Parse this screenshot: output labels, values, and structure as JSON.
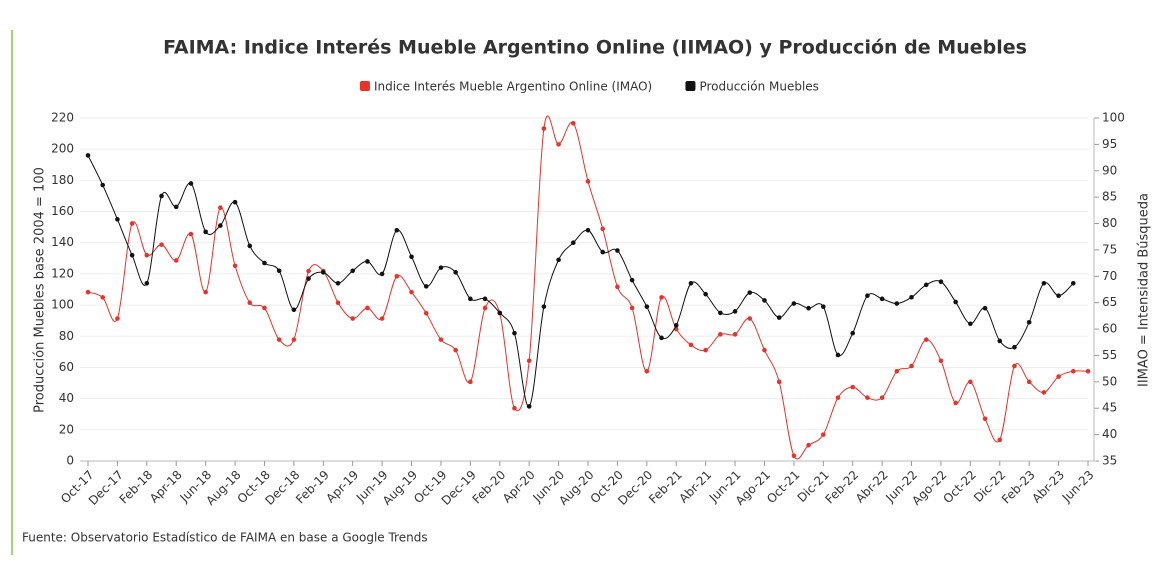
{
  "chart_data": {
    "type": "line",
    "title": "FAIMA: Indice Interés Mueble Argentino Online (IIMAO) y Producción de Muebles",
    "source": "Fuente: Observatorio Estadístico de FAIMA en base a Google Trends",
    "ylabel": "Producción Muebles base 2004 = 100",
    "y2label": "IIMAO = Intensidad Búsqueda",
    "categories": [
      "Oct-17",
      null,
      "Dec-17",
      null,
      "Feb-18",
      null,
      "Apr-18",
      null,
      "Jun-18",
      null,
      "Aug-18",
      null,
      "Oct-18",
      null,
      "Dec-18",
      null,
      "Feb-19",
      null,
      "Apr-19",
      null,
      "Jun-19",
      null,
      "Aug-19",
      null,
      "Oct-19",
      null,
      "Dec-19",
      null,
      "Feb-20",
      null,
      "Apr-20",
      null,
      "Jun-20",
      null,
      "Aug-20",
      null,
      "Oct-20",
      null,
      "Dec-20",
      null,
      "Feb-21",
      null,
      "Abr-21",
      null,
      "Jun-21",
      null,
      "Ago-21",
      null,
      "Oct-21",
      null,
      "Dic-21",
      null,
      "Feb-22",
      null,
      "Abr-22",
      null,
      "Jun-22",
      null,
      "Ago-22",
      null,
      "Oct-22",
      null,
      "Dic-22",
      null,
      "Feb-23",
      null,
      "Abr-23",
      null,
      "Jun-23"
    ],
    "series": [
      {
        "name": "Indice Interés Mueble Argentino Online (IMAO)",
        "color": "#e8322a",
        "axis": "y2",
        "values": [
          67,
          66,
          62,
          80,
          74,
          76,
          73,
          78,
          67,
          83,
          72,
          65,
          64,
          58,
          58,
          71,
          71,
          65,
          62,
          64,
          62,
          70,
          67,
          63,
          58,
          56,
          50,
          64,
          63,
          45,
          54,
          98,
          95,
          99,
          88,
          79,
          68,
          64,
          52,
          66,
          60,
          57,
          56,
          59,
          59,
          62,
          56,
          50,
          36,
          38,
          40,
          47,
          49,
          47,
          47,
          52,
          53,
          58,
          54,
          46,
          50,
          43,
          39,
          53,
          50,
          48,
          51,
          52,
          52
        ]
      },
      {
        "name": "Producción Muebles",
        "color": "#111111",
        "values": [
          196,
          177,
          155,
          132,
          114,
          170,
          163,
          178,
          147,
          151,
          166,
          138,
          127,
          122,
          97,
          117,
          121,
          114,
          122,
          128,
          120,
          148,
          131,
          112,
          124,
          121,
          104,
          104,
          95,
          82,
          35,
          99,
          129,
          140,
          148,
          134,
          135,
          116,
          99,
          79,
          87,
          114,
          107,
          95,
          96,
          108,
          103,
          92,
          101,
          98,
          99,
          68,
          82,
          106,
          104,
          101,
          105,
          113,
          115,
          102,
          88,
          98,
          77,
          73,
          89,
          114,
          106,
          114,
          null
        ]
      }
    ],
    "ylim": [
      0,
      220
    ],
    "yticks": [
      0,
      20,
      40,
      60,
      80,
      100,
      120,
      140,
      160,
      180,
      200,
      220
    ],
    "y2lim": [
      35,
      100
    ],
    "y2ticks": [
      35,
      40,
      45,
      50,
      55,
      60,
      65,
      70,
      75,
      80,
      85,
      90,
      95,
      100
    ],
    "grid": true,
    "legend": "top"
  }
}
